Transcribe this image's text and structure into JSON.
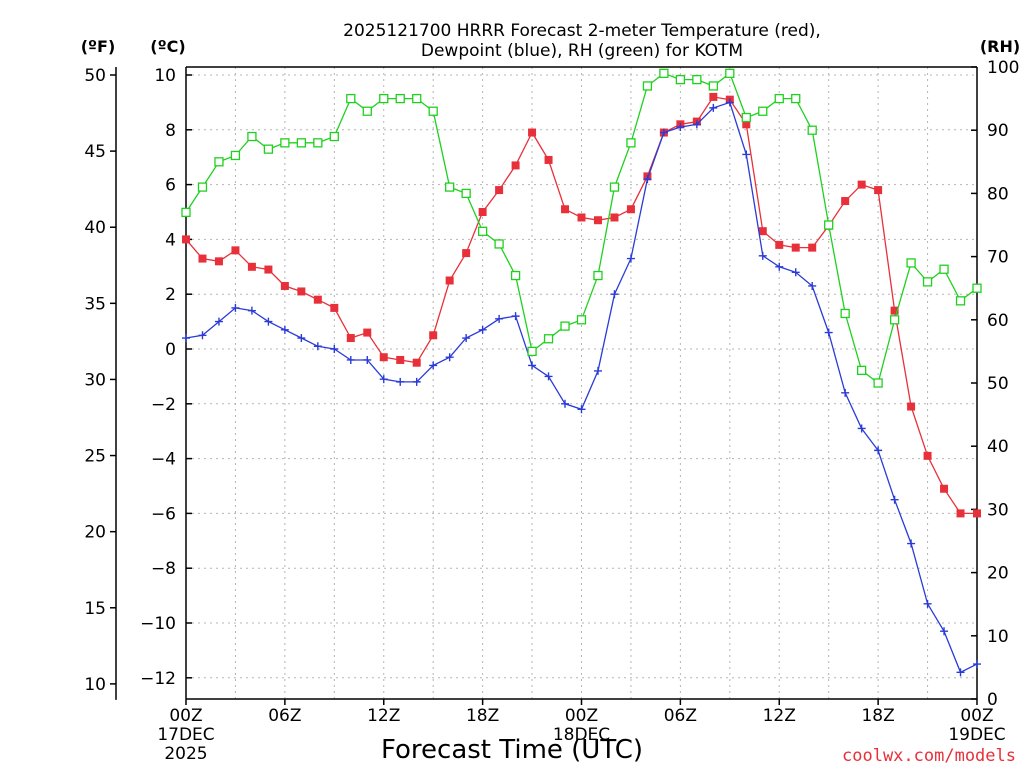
{
  "title_line1": "2025121700 HRRR Forecast 2-meter Temperature (red),",
  "title_line2": "Dewpoint (blue), RH (green) for KOTM",
  "unit_f": "(ºF)",
  "unit_c": "(ºC)",
  "unit_rh": "(RH)",
  "xlabel": "Forecast Time (UTC)",
  "credit": "coolwx.com/models",
  "chart_data": {
    "type": "line",
    "title": "2025121700 HRRR Forecast 2-meter Temperature (red), Dewpoint (blue), RH (green) for KOTM",
    "xlabel": "Forecast Time (UTC)",
    "x_unit": "forecast hour from 2025-12-17 00Z",
    "x": [
      0,
      1,
      2,
      3,
      4,
      5,
      6,
      7,
      8,
      9,
      10,
      11,
      12,
      13,
      14,
      15,
      16,
      17,
      18,
      19,
      20,
      21,
      22,
      23,
      24,
      25,
      26,
      27,
      28,
      29,
      30,
      31,
      32,
      33,
      34,
      35,
      36,
      37,
      38,
      39,
      40,
      41,
      42,
      43,
      44,
      45,
      46,
      47,
      48
    ],
    "xlim": [
      0,
      48
    ],
    "xticks": [
      {
        "x": 0,
        "lines": [
          "00Z",
          "17DEC",
          "2025"
        ]
      },
      {
        "x": 6,
        "lines": [
          "06Z"
        ]
      },
      {
        "x": 12,
        "lines": [
          "12Z"
        ]
      },
      {
        "x": 18,
        "lines": [
          "18Z"
        ]
      },
      {
        "x": 24,
        "lines": [
          "00Z",
          "18DEC"
        ]
      },
      {
        "x": 30,
        "lines": [
          "06Z"
        ]
      },
      {
        "x": 36,
        "lines": [
          "12Z"
        ]
      },
      {
        "x": 42,
        "lines": [
          "18Z"
        ]
      },
      {
        "x": 48,
        "lines": [
          "00Z",
          "19DEC"
        ]
      }
    ],
    "ylim_c": [
      -13,
      10
    ],
    "yticks_c": [
      "10",
      "8",
      "6",
      "4",
      "2",
      "0",
      "−2",
      "−4",
      "−6",
      "−8",
      "−10",
      "−12"
    ],
    "yticks_f": [
      "50",
      "45",
      "40",
      "35",
      "30",
      "25",
      "20",
      "15",
      "10"
    ],
    "ylim_rh": [
      0,
      100
    ],
    "yticks_rh": [
      "100",
      "90",
      "80",
      "70",
      "60",
      "50",
      "40",
      "30",
      "20",
      "10",
      "0"
    ],
    "grid": true,
    "series": [
      {
        "name": "Temperature",
        "axis": "c",
        "color": "#e8303a",
        "marker": "filled-square",
        "values": [
          4.0,
          3.3,
          3.2,
          3.6,
          3.0,
          2.9,
          2.3,
          2.1,
          1.8,
          1.5,
          0.4,
          0.6,
          -0.3,
          -0.4,
          -0.5,
          0.5,
          2.5,
          3.5,
          5.0,
          5.8,
          6.7,
          7.9,
          6.9,
          5.1,
          4.8,
          4.7,
          4.8,
          5.1,
          6.3,
          7.9,
          8.2,
          8.3,
          9.2,
          9.1,
          8.2,
          4.3,
          3.8,
          3.7,
          3.7,
          4.5,
          5.4,
          6.0,
          5.8,
          1.4,
          -2.1,
          -3.9,
          -5.1,
          -6.0,
          -6.0
        ]
      },
      {
        "name": "Dewpoint",
        "axis": "c",
        "color": "#2a3bd8",
        "marker": "plus",
        "values": [
          0.4,
          0.5,
          1.0,
          1.5,
          1.4,
          1.0,
          0.7,
          0.4,
          0.1,
          0.0,
          -0.4,
          -0.4,
          -1.1,
          -1.2,
          -1.2,
          -0.6,
          -0.3,
          0.4,
          0.7,
          1.1,
          1.2,
          -0.6,
          -1.0,
          -2.0,
          -2.2,
          -0.8,
          2.0,
          3.3,
          6.2,
          7.9,
          8.1,
          8.2,
          8.8,
          9.0,
          7.1,
          3.4,
          3.0,
          2.8,
          2.3,
          0.6,
          -1.6,
          -2.9,
          -3.7,
          -5.5,
          -7.1,
          -9.3,
          -10.3,
          -11.8,
          -11.5
        ]
      },
      {
        "name": "RH",
        "axis": "rh",
        "color": "#1fd11f",
        "marker": "open-square",
        "values": [
          77,
          81,
          85,
          86,
          89,
          87,
          88,
          88,
          88,
          89,
          95,
          93,
          95,
          95,
          95,
          93,
          81,
          80,
          74,
          72,
          67,
          55,
          57,
          59,
          60,
          67,
          81,
          88,
          97,
          99,
          98,
          98,
          97,
          99,
          92,
          93,
          95,
          95,
          90,
          75,
          61,
          52,
          50,
          60,
          69,
          66,
          68,
          63,
          65
        ]
      }
    ]
  }
}
